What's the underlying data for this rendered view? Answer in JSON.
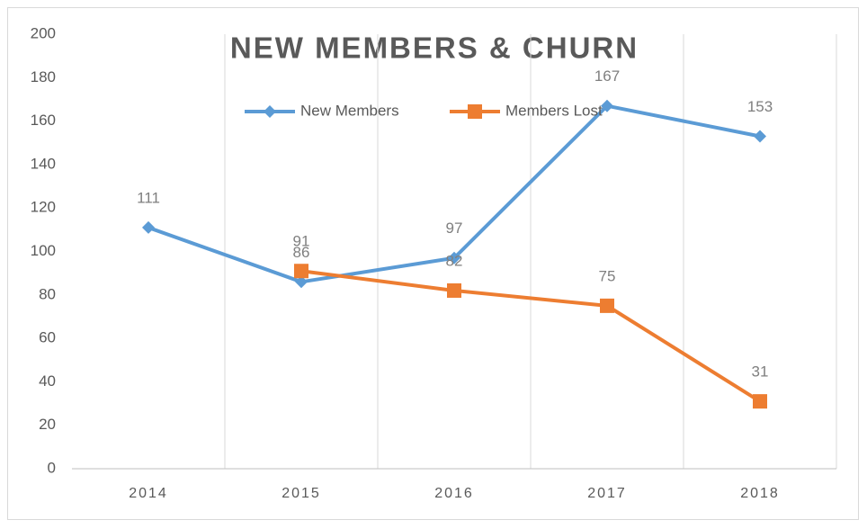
{
  "chart_data": {
    "type": "line",
    "title": "NEW MEMBERS & CHURN",
    "categories": [
      "2014",
      "2015",
      "2016",
      "2017",
      "2018"
    ],
    "series": [
      {
        "name": "New Members",
        "color": "#5b9bd5",
        "marker": "diamond",
        "values": [
          111,
          86,
          97,
          167,
          153
        ]
      },
      {
        "name": "Members Lost",
        "color": "#ed7d31",
        "marker": "square",
        "values": [
          null,
          91,
          82,
          75,
          31
        ]
      }
    ],
    "ylim": [
      0,
      200
    ],
    "yticks": [
      0,
      20,
      40,
      60,
      80,
      100,
      120,
      140,
      160,
      180,
      200
    ],
    "legend": "top",
    "data_labels": true
  }
}
